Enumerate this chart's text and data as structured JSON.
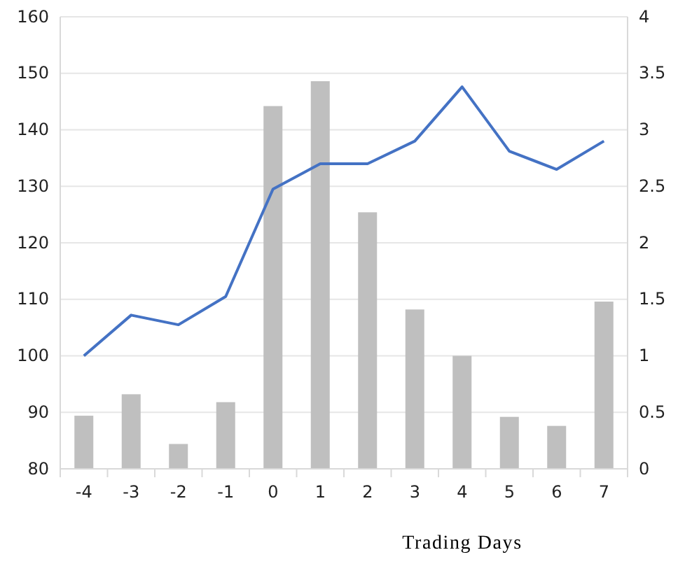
{
  "chart_data": {
    "type": "bar",
    "xlabel": "Trading Days",
    "categories": [
      "-4",
      "-3",
      "-2",
      "-1",
      "0",
      "1",
      "2",
      "3",
      "4",
      "5",
      "6",
      "7"
    ],
    "series": [
      {
        "type": "bar",
        "axis": "y2",
        "color": "#bfbfbf",
        "values": [
          0.47,
          0.66,
          0.22,
          0.59,
          3.21,
          3.43,
          2.27,
          1.41,
          1.0,
          0.46,
          0.38,
          1.48
        ]
      },
      {
        "type": "line",
        "axis": "y",
        "color": "#4472c4",
        "values": [
          100,
          107.2,
          105.5,
          110.5,
          129.5,
          134,
          134,
          138,
          147.6,
          136.2,
          133,
          138
        ]
      }
    ],
    "ylim": [
      80,
      160
    ],
    "yticks": [
      80,
      90,
      100,
      110,
      120,
      130,
      140,
      150,
      160
    ],
    "y2lim": [
      0,
      4
    ],
    "y2ticks": [
      {
        "value": 0,
        "label": "0"
      },
      {
        "value": 0.5,
        "label": "0.5"
      },
      {
        "value": 1,
        "label": "1"
      },
      {
        "value": 1.5,
        "label": "1.5"
      },
      {
        "value": 2,
        "label": "2"
      },
      {
        "value": 2.5,
        "label": "2.5"
      },
      {
        "value": 3,
        "label": "3"
      },
      {
        "value": 3.5,
        "label": "3.5"
      },
      {
        "value": 4,
        "label": "4"
      }
    ],
    "grid": "y",
    "legend": false,
    "marker": "none",
    "line_style": "solid"
  }
}
